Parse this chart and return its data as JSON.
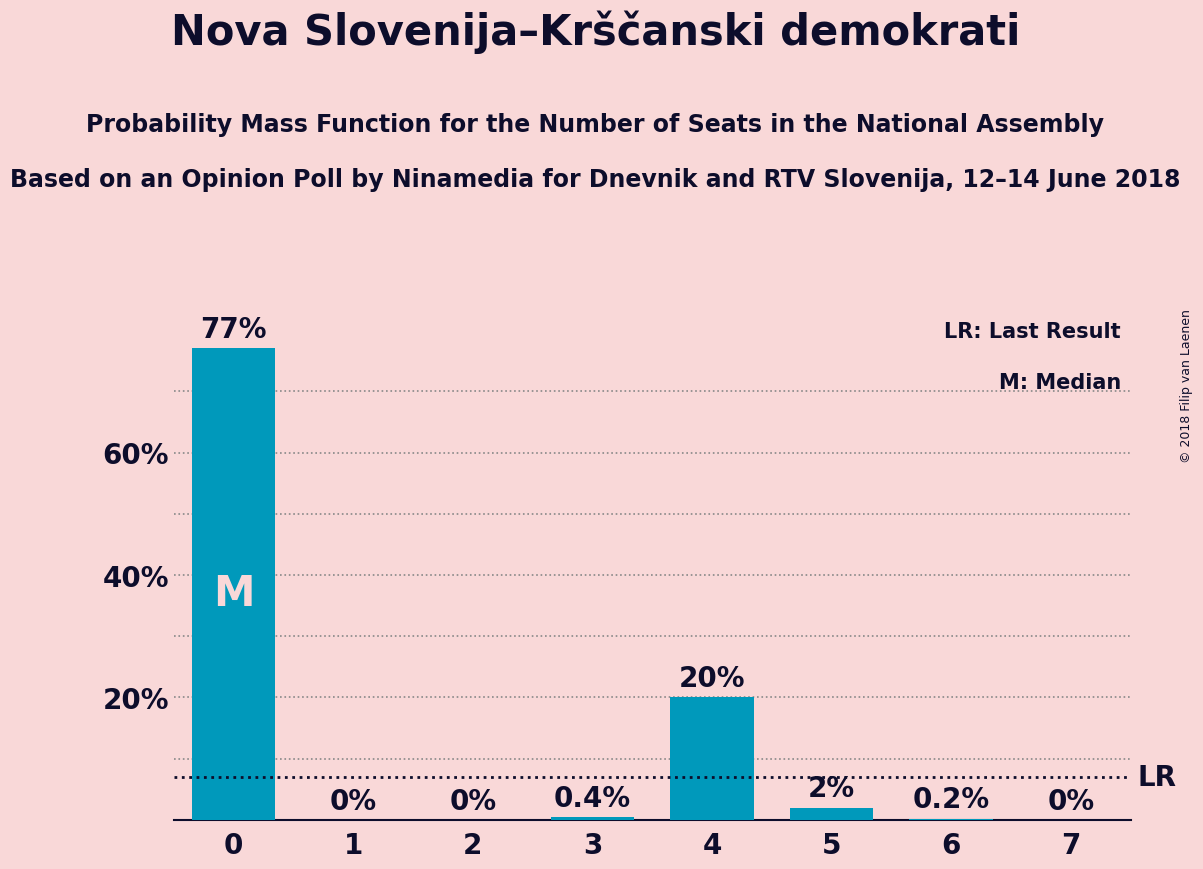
{
  "title": "Nova Slovenija–Krščanski demokrati",
  "subtitle": "Probability Mass Function for the Number of Seats in the National Assembly",
  "subsubtitle": "Based on an Opinion Poll by Ninamedia for Dnevnik and RTV Slovenija, 12–14 June 2018",
  "copyright": "© 2018 Filip van Laenen",
  "categories": [
    0,
    1,
    2,
    3,
    4,
    5,
    6,
    7
  ],
  "values": [
    0.77,
    0.0,
    0.0,
    0.004,
    0.2,
    0.02,
    0.002,
    0.0
  ],
  "bar_color": "#0099bb",
  "background_color": "#f9d8d8",
  "text_color": "#0d0d2b",
  "bar_text_color_inside": "#f9d8d8",
  "median_bar": 0,
  "median_label": "M",
  "lr_value": 0.07,
  "lr_label": "LR",
  "ylim": [
    0,
    0.83
  ],
  "value_labels": [
    "77%",
    "0%",
    "0%",
    "0.4%",
    "20%",
    "2%",
    "0.2%",
    "0%"
  ],
  "grid_color": "#888888",
  "title_fontsize": 30,
  "subtitle_fontsize": 17,
  "subsubtitle_fontsize": 17,
  "tick_fontsize": 20,
  "value_label_fontsize": 20,
  "median_fontsize": 30,
  "legend_fontsize": 15,
  "lr_fontsize": 20,
  "copyright_fontsize": 9
}
